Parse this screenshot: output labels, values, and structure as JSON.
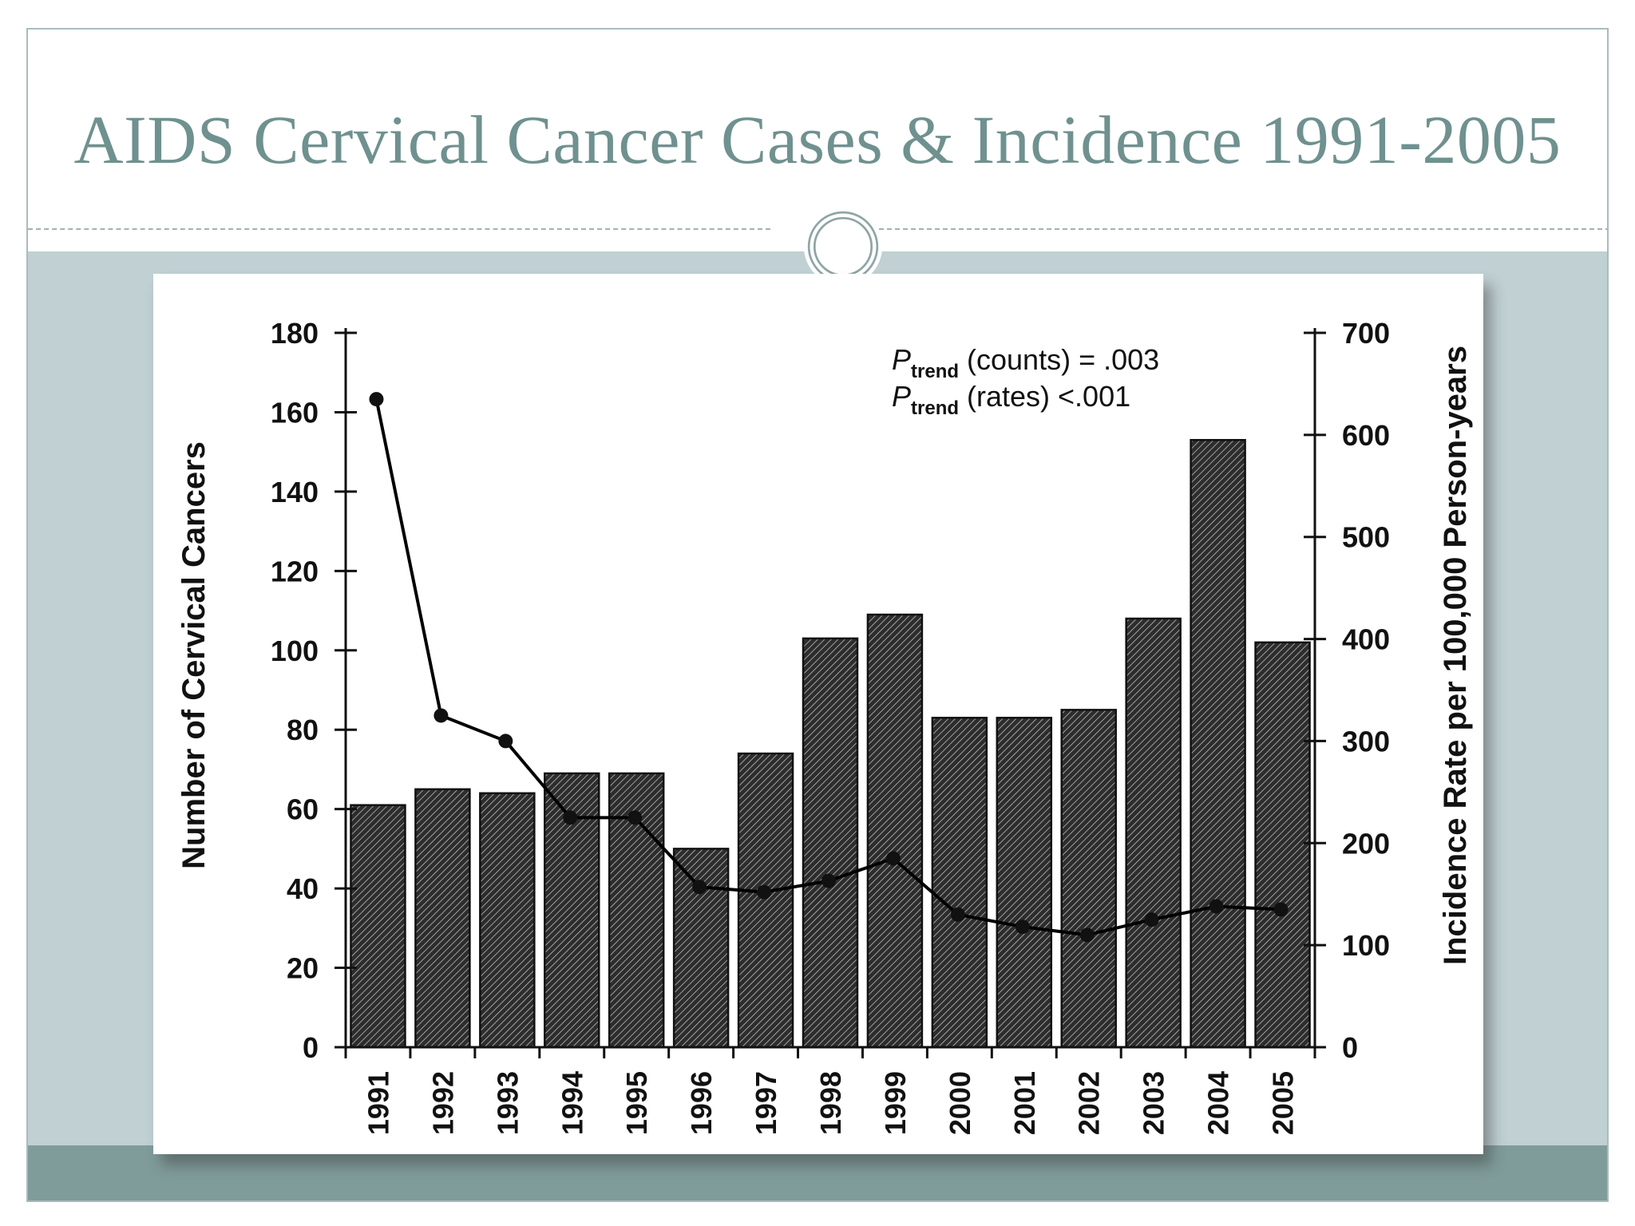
{
  "slide": {
    "title": "AIDS Cervical Cancer Cases & Incidence 1991-2005"
  },
  "chart_data": {
    "type": "bar",
    "categories": [
      "1991",
      "1992",
      "1993",
      "1994",
      "1995",
      "1996",
      "1997",
      "1998",
      "1999",
      "2000",
      "2001",
      "2002",
      "2003",
      "2004",
      "2005"
    ],
    "series": [
      {
        "type": "bar",
        "axis": "left",
        "values": [
          61,
          65,
          64,
          69,
          69,
          50,
          74,
          103,
          109,
          83,
          83,
          85,
          108,
          153,
          102
        ]
      },
      {
        "type": "line",
        "axis": "right",
        "values": [
          635,
          325,
          300,
          225,
          225,
          157,
          152,
          163,
          185,
          130,
          118,
          110,
          125,
          138,
          135
        ]
      }
    ],
    "ylabel": "Number of Cervical Cancers",
    "ylabel_right": "Incidence Rate per 100,000 Person-years",
    "ylim": [
      0,
      180
    ],
    "ylim_right": [
      0,
      700
    ],
    "yticks": [
      0,
      20,
      40,
      60,
      80,
      100,
      120,
      140,
      160,
      180
    ],
    "yticks_right": [
      0,
      100,
      200,
      300,
      400,
      500,
      600,
      700
    ],
    "annotations": [
      {
        "italic": "P",
        "subscript": "trend",
        "text": " (counts) = .003"
      },
      {
        "italic": "P",
        "subscript": "trend",
        "text": " (rates) <.001"
      }
    ],
    "bar_style": "diagonal hatch, dark",
    "line_color": "#000000",
    "grid": false
  }
}
